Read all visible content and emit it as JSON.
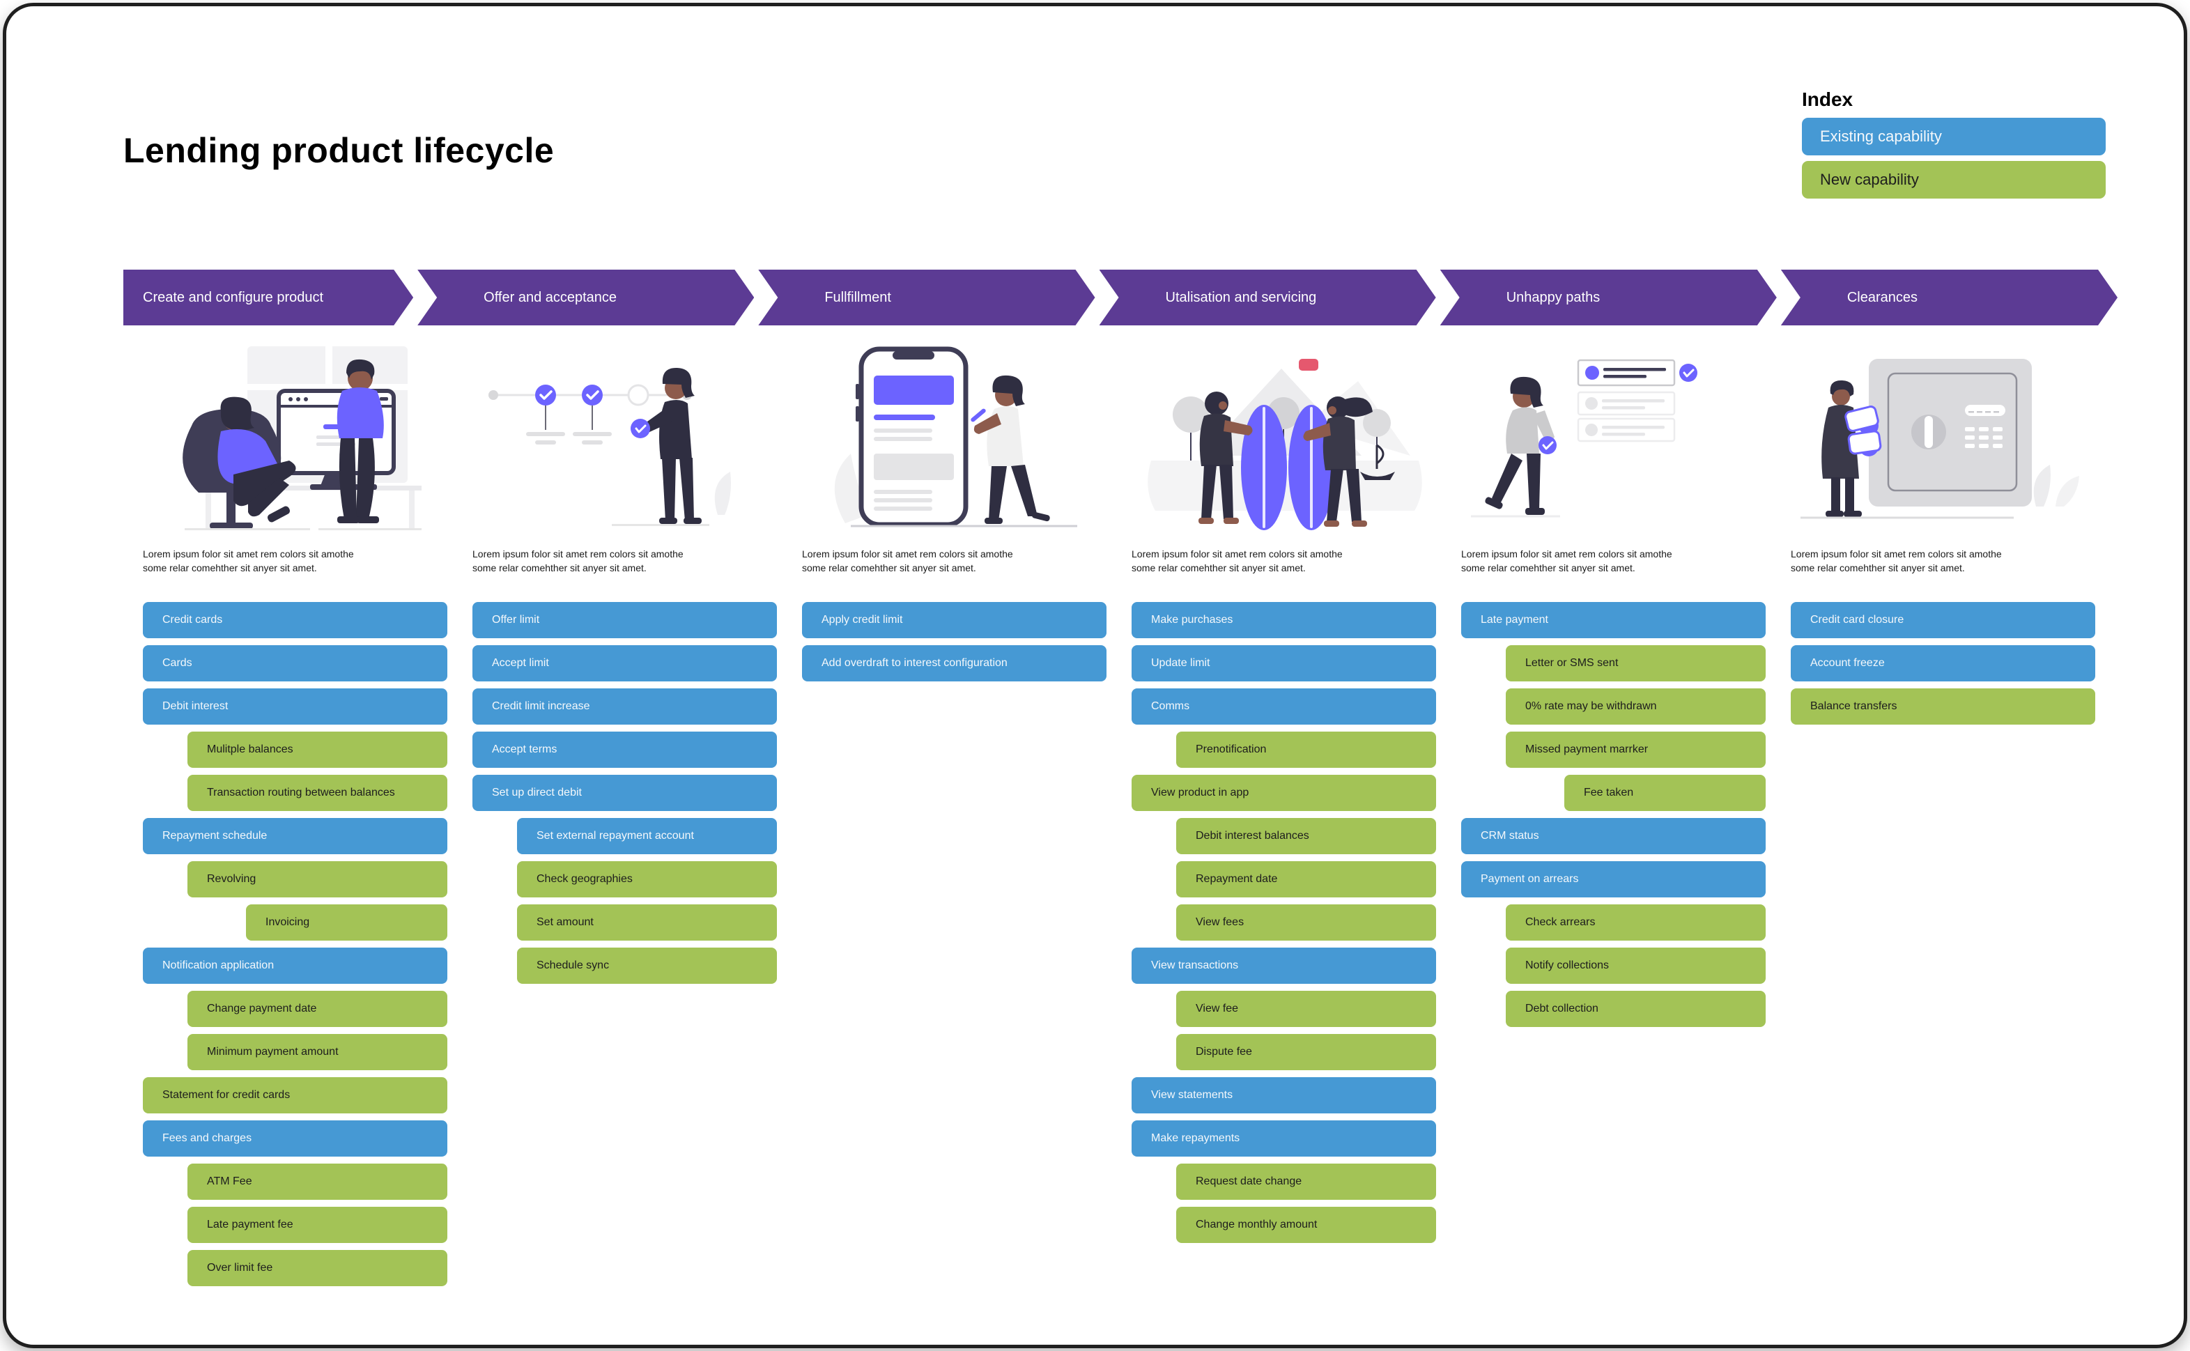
{
  "page": {
    "title": "Lending product lifecycle"
  },
  "colors": {
    "existing_capability": "#4699d4",
    "new_capability": "#a3c356",
    "phase_band": "#5c3b94"
  },
  "index": {
    "label": "Index",
    "items": [
      {
        "label": "Existing capability",
        "type": "existing"
      },
      {
        "label": "New capability",
        "type": "new"
      }
    ]
  },
  "phases": [
    {
      "label": "Create and configure product",
      "illustration": "two-people-at-computer",
      "description": "Lorem ipsum folor sit amet rem colors sit amothe some relar comehther sit anyer sit amet.",
      "capabilities": [
        {
          "label": "Credit cards",
          "type": "existing",
          "indent": 0
        },
        {
          "label": "Cards",
          "type": "existing",
          "indent": 0
        },
        {
          "label": "Debit interest",
          "type": "existing",
          "indent": 0
        },
        {
          "label": "Mulitple balances",
          "type": "new",
          "indent": 1
        },
        {
          "label": "Transaction routing between balances",
          "type": "new",
          "indent": 1
        },
        {
          "label": "Repayment schedule",
          "type": "existing",
          "indent": 0
        },
        {
          "label": "Revolving",
          "type": "new",
          "indent": 1
        },
        {
          "label": "Invoicing",
          "type": "new",
          "indent": 2
        },
        {
          "label": "Notification application",
          "type": "existing",
          "indent": 0
        },
        {
          "label": "Change payment date",
          "type": "new",
          "indent": 1
        },
        {
          "label": "Minimum payment amount",
          "type": "new",
          "indent": 1
        },
        {
          "label": "Statement for credit cards",
          "type": "new",
          "indent": 0
        },
        {
          "label": "Fees and charges",
          "type": "existing",
          "indent": 0
        },
        {
          "label": "ATM Fee",
          "type": "new",
          "indent": 1
        },
        {
          "label": "Late payment fee",
          "type": "new",
          "indent": 1
        },
        {
          "label": "Over limit fee",
          "type": "new",
          "indent": 1
        }
      ]
    },
    {
      "label": "Offer and acceptance",
      "illustration": "person-with-timeline-checkpoints",
      "description": "Lorem ipsum folor sit amet rem colors sit amothe some relar comehther sit anyer sit amet.",
      "capabilities": [
        {
          "label": "Offer limit",
          "type": "existing",
          "indent": 0
        },
        {
          "label": "Accept limit",
          "type": "existing",
          "indent": 0
        },
        {
          "label": "Credit limit increase",
          "type": "existing",
          "indent": 0
        },
        {
          "label": "Accept terms",
          "type": "existing",
          "indent": 0
        },
        {
          "label": "Set up direct debit",
          "type": "existing",
          "indent": 0
        },
        {
          "label": "Set external repayment account",
          "type": "existing",
          "indent": 1
        },
        {
          "label": "Check geographies",
          "type": "new",
          "indent": 1
        },
        {
          "label": "Set amount",
          "type": "new",
          "indent": 1
        },
        {
          "label": "Schedule sync",
          "type": "new",
          "indent": 1
        }
      ]
    },
    {
      "label": "Fullfillment",
      "illustration": "person-at-giant-phone",
      "description": "Lorem ipsum folor sit amet rem colors sit amothe some relar comehther sit anyer sit amet.",
      "capabilities": [
        {
          "label": "Apply credit limit",
          "type": "existing",
          "indent": 0
        },
        {
          "label": "Add overdraft to interest configuration",
          "type": "existing",
          "indent": 0
        }
      ]
    },
    {
      "label": "Utalisation and servicing",
      "illustration": "people-with-surfboards",
      "description": "Lorem ipsum folor sit amet rem colors sit amothe some relar comehther sit anyer sit amet.",
      "capabilities": [
        {
          "label": "Make purchases",
          "type": "existing",
          "indent": 0
        },
        {
          "label": "Update limit",
          "type": "existing",
          "indent": 0
        },
        {
          "label": "Comms",
          "type": "existing",
          "indent": 0
        },
        {
          "label": "Prenotification",
          "type": "new",
          "indent": 1
        },
        {
          "label": "View product in app",
          "type": "new",
          "indent": 0
        },
        {
          "label": "Debit interest balances",
          "type": "new",
          "indent": 1
        },
        {
          "label": "Repayment date",
          "type": "new",
          "indent": 1
        },
        {
          "label": "View fees",
          "type": "new",
          "indent": 1
        },
        {
          "label": "View transactions",
          "type": "existing",
          "indent": 0
        },
        {
          "label": "View fee",
          "type": "new",
          "indent": 1
        },
        {
          "label": "Dispute fee",
          "type": "new",
          "indent": 1
        },
        {
          "label": "View statements",
          "type": "existing",
          "indent": 0
        },
        {
          "label": "Make repayments",
          "type": "existing",
          "indent": 0
        },
        {
          "label": "Request date change",
          "type": "new",
          "indent": 1
        },
        {
          "label": "Change monthly amount",
          "type": "new",
          "indent": 1
        }
      ]
    },
    {
      "label": "Unhappy paths",
      "illustration": "person-with-checklist",
      "description": "Lorem ipsum folor sit amet rem colors sit amothe some relar comehther sit anyer sit amet.",
      "capabilities": [
        {
          "label": "Late payment",
          "type": "existing",
          "indent": 0
        },
        {
          "label": "Letter or SMS sent",
          "type": "new",
          "indent": 1
        },
        {
          "label": "0% rate may be withdrawn",
          "type": "new",
          "indent": 1
        },
        {
          "label": "Missed payment marrker",
          "type": "new",
          "indent": 1
        },
        {
          "label": "Fee taken",
          "type": "new",
          "indent": 2
        },
        {
          "label": "CRM status",
          "type": "existing",
          "indent": 0
        },
        {
          "label": "Payment on arrears",
          "type": "existing",
          "indent": 0
        },
        {
          "label": "Check arrears",
          "type": "new",
          "indent": 1
        },
        {
          "label": "Notify collections",
          "type": "new",
          "indent": 1
        },
        {
          "label": "Debt collection",
          "type": "new",
          "indent": 1
        }
      ]
    },
    {
      "label": "Clearances",
      "illustration": "person-at-safe",
      "description": "Lorem ipsum folor sit amet rem colors sit amothe some relar comehther sit anyer sit amet.",
      "capabilities": [
        {
          "label": "Credit card closure",
          "type": "existing",
          "indent": 0
        },
        {
          "label": "Account freeze",
          "type": "existing",
          "indent": 0
        },
        {
          "label": "Balance transfers",
          "type": "new",
          "indent": 0
        }
      ]
    }
  ]
}
